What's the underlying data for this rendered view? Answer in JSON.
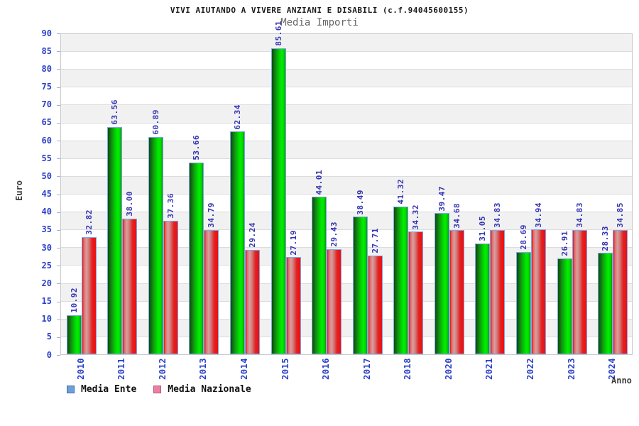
{
  "header": {
    "title": "VIVI AIUTANDO A VIVERE ANZIANI E DISABILI (c.f.94045600155)",
    "subtitle": "Media Importi"
  },
  "axes": {
    "y_label": "Euro",
    "x_label": "Anno",
    "y_ticks": [
      0,
      5,
      10,
      15,
      20,
      25,
      30,
      35,
      40,
      45,
      50,
      55,
      60,
      65,
      70,
      75,
      80,
      85,
      90
    ]
  },
  "legend": {
    "items": [
      {
        "label": "Media Ente",
        "swatch": "blue-square-icon"
      },
      {
        "label": "Media Nazionale",
        "swatch": "pink-square-icon"
      }
    ]
  },
  "chart_data": {
    "type": "bar",
    "title": "VIVI AIUTANDO A VIVERE ANZIANI E DISABILI (c.f.94045600155)",
    "subtitle": "Media Importi",
    "categories": [
      "2010",
      "2011",
      "2012",
      "2013",
      "2014",
      "2015",
      "2016",
      "2017",
      "2018",
      "2020",
      "2021",
      "2022",
      "2023",
      "2024"
    ],
    "series": [
      {
        "name": "Media Ente",
        "values": [
          10.92,
          63.56,
          60.89,
          53.66,
          62.34,
          85.61,
          44.01,
          38.49,
          41.32,
          39.47,
          31.05,
          28.69,
          26.91,
          28.33
        ]
      },
      {
        "name": "Media Nazionale",
        "values": [
          32.82,
          38.0,
          37.36,
          34.79,
          29.24,
          27.19,
          29.43,
          27.71,
          34.32,
          34.68,
          34.83,
          34.94,
          34.83,
          34.85
        ]
      }
    ],
    "xlabel": "Anno",
    "ylabel": "Euro",
    "ylim": [
      0,
      90
    ],
    "ytick_step": 5,
    "grid": "horizontal-bands-alternating",
    "legend_position": "bottom-left",
    "value_labels": "rotated-90-above-bars"
  },
  "colors": {
    "bar_ente_bright": "#02ee02",
    "bar_ente_dark": "#0a4c0a",
    "bar_nazionale_strong": "#e01616",
    "bar_nazionale_pale": "#d89f9f",
    "bar_border": "#7fa6e6",
    "axis_text_blue": "#2b40c8",
    "value_label_blue": "#3434b4",
    "band_gray": "#f1f1f2",
    "grid_line": "#dcdcdd",
    "frame": "#c9c9c9",
    "legend_ente_swatch": "#6f9fd8",
    "legend_nazionale_swatch": "#ec7fa6"
  }
}
